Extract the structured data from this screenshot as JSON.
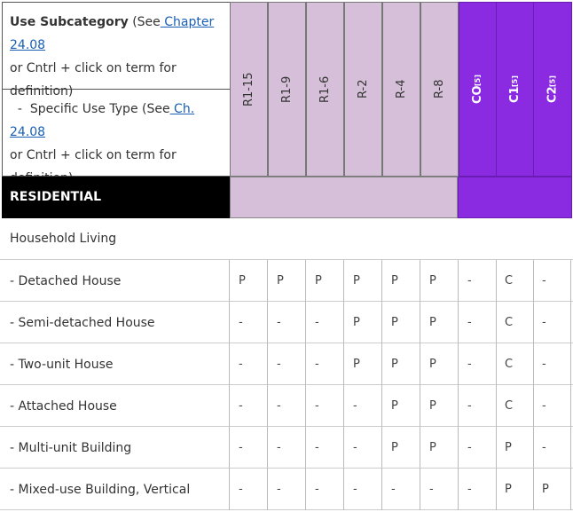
{
  "header": {
    "use_subcategory_label": "Use Subcategory",
    "use_subcategory_see": " (See",
    "use_subcategory_link": " Chapter 24.08",
    "use_subcategory_rest": "or Cntrl + click on term for definition)",
    "specific_use_prefix": "  -  Specific Use Type",
    "specific_use_see": " (See",
    "specific_use_link": " Ch. 24.08",
    "specific_use_rest": "or Cntrl + click on term for definition)"
  },
  "zones": [
    {
      "label": "R1-15",
      "sup": "",
      "group": "residential"
    },
    {
      "label": "R1-9",
      "sup": "",
      "group": "residential"
    },
    {
      "label": "R1-6",
      "sup": "",
      "group": "residential"
    },
    {
      "label": "R-2",
      "sup": "",
      "group": "residential"
    },
    {
      "label": "R-4",
      "sup": "",
      "group": "residential"
    },
    {
      "label": "R-8",
      "sup": "",
      "group": "residential"
    },
    {
      "label": "CO",
      "sup": "[5]",
      "group": "commercial"
    },
    {
      "label": "C1",
      "sup": "[5]",
      "group": "commercial"
    },
    {
      "label": "C2",
      "sup": "[5]",
      "group": "commercial"
    }
  ],
  "section": {
    "label": "RESIDENTIAL"
  },
  "category": {
    "label": "Household Living"
  },
  "rows": [
    {
      "label": "- Detached House",
      "values": [
        "P",
        "P",
        "P",
        "P",
        "P",
        "P",
        "-",
        "C",
        "-"
      ]
    },
    {
      "label": "- Semi-detached House",
      "values": [
        "-",
        "-",
        "-",
        "P",
        "P",
        "P",
        "-",
        "C",
        "-"
      ]
    },
    {
      "label": "- Two-unit House",
      "values": [
        "-",
        "-",
        "-",
        "P",
        "P",
        "P",
        "-",
        "C",
        "-"
      ]
    },
    {
      "label": "- Attached House",
      "values": [
        "-",
        "-",
        "-",
        "-",
        "P",
        "P",
        "-",
        "C",
        "-"
      ]
    },
    {
      "label": "- Multi-unit Building",
      "values": [
        "-",
        "-",
        "-",
        "-",
        "P",
        "P",
        "-",
        "P",
        "-"
      ]
    },
    {
      "label": "- Mixed-use Building, Vertical",
      "values": [
        "-",
        "-",
        "-",
        "-",
        "-",
        "-",
        "-",
        "P",
        "P"
      ]
    }
  ],
  "colors": {
    "residential_header": "#d6bfd8",
    "commercial_header": "#8a2be2",
    "section_bar": "#000000"
  }
}
